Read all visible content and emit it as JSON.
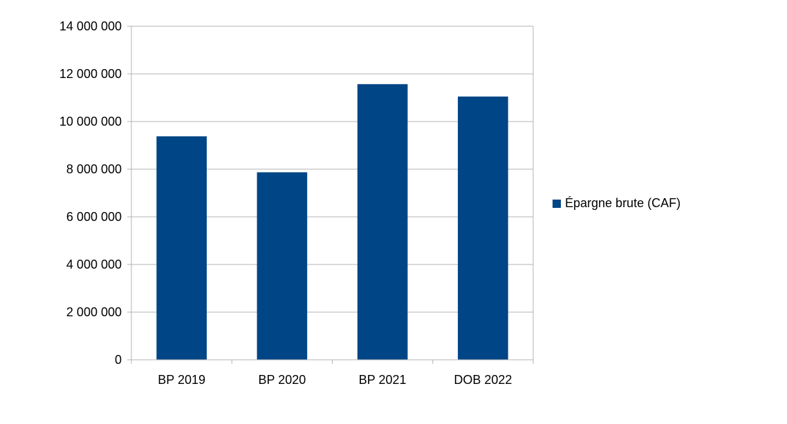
{
  "chart_data": {
    "type": "bar",
    "categories": [
      "BP 2019",
      "BP 2020",
      "BP 2021",
      "DOB 2022"
    ],
    "series": [
      {
        "name": "Épargne brute (CAF)",
        "values": [
          9380000,
          7870000,
          11570000,
          11050000
        ],
        "color": "#004586"
      }
    ],
    "ylim": [
      0,
      14000000
    ],
    "yticks": [
      "0",
      "2 000 000",
      "4 000 000",
      "6 000 000",
      "8 000 000",
      "10 000 000",
      "12 000 000",
      "14 000 000"
    ],
    "grid": true,
    "legend_position": "right"
  }
}
